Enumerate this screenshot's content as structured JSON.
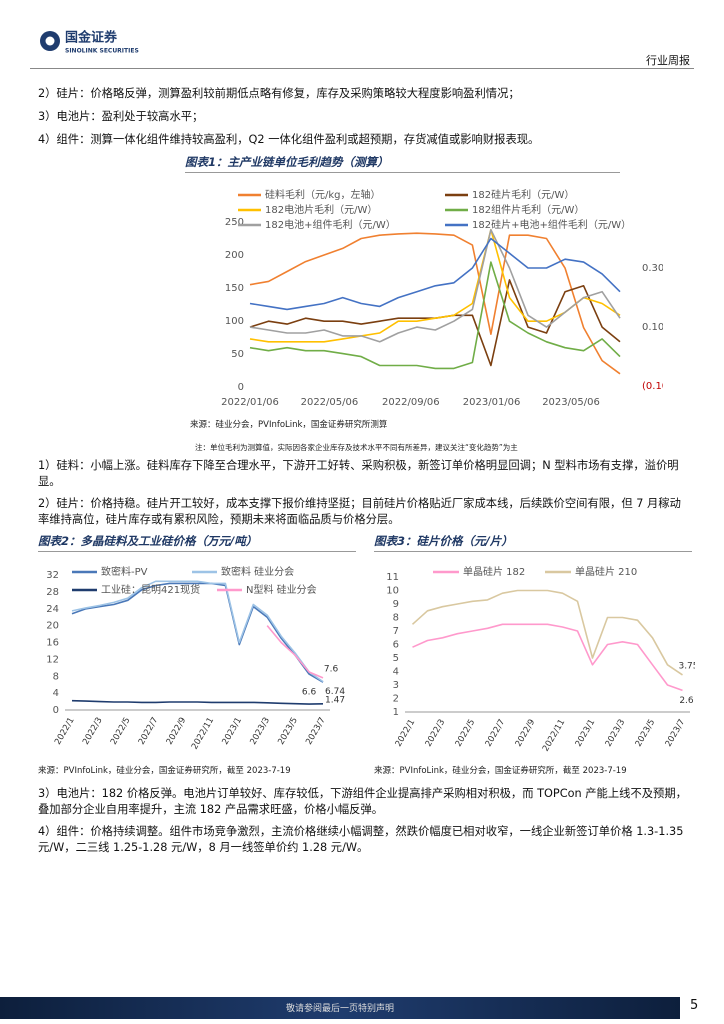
{
  "header": {
    "logo_cn": "国金证券",
    "logo_en": "SINOLINK SECURITIES",
    "section": "行业周报"
  },
  "paragraphs_top": [
    "2）硅片：价格略反弹，测算盈利较前期低点略有修复，库存及采购策略较大程度影响盈利情况；",
    "3）电池片：盈利处于较高水平；",
    "4）组件：测算一体化组件维持较高盈利，Q2 一体化组件盈利或超预期，存货减值或影响财报表现。"
  ],
  "paragraphs_mid": [
    "1）硅料：小幅上涨。硅料库存下降至合理水平，下游开工好转、采购积极，新签订单价格明显回调；N 型料市场有支撑，溢价明显。",
    "2）硅片：价格持稳。硅片开工较好，成本支撑下报价维持坚挺；目前硅片价格贴近厂家成本线，后续跌价空间有限，但 7 月稼动率维持高位，硅片库存或有累积风险，预期未来将面临品质与价格分层。"
  ],
  "paragraphs_bottom": [
    "3）电池片：182 价格反弹。电池片订单较好、库存较低，下游组件企业提高排产采购相对积极，而 TOPCon 产能上线不及预期，叠加部分企业自用率提升，主流 182 产品需求旺盛，价格小幅反弹。",
    "4）组件：价格持续调整。组件市场竞争激烈，主流价格继续小幅调整，然跌价幅度已相对收窄，一线企业新签订单价格 1.3-1.35 元/W，二三线 1.25-1.28 元/W，8 月一线签单价约 1.28 元/W。"
  ],
  "chart_data": [
    {
      "type": "line",
      "title": "图表1：主产业链单位毛利趋势（测算）",
      "source": "来源：硅业分会，PVInfoLink，国金证券研究所测算",
      "note": "注：单位毛利为测算值，实际因各家企业库存及技术水平不同有所差异，建议关注“变化趋势”为主",
      "x": [
        "2022/01/06",
        "2022/02/03",
        "2022/03/03",
        "2022/03/31",
        "2022/04/28",
        "2022/05/26",
        "2022/06/23",
        "2022/07/21",
        "2022/08/18",
        "2022/09/15",
        "2022/10/13",
        "2022/11/10",
        "2022/12/08",
        "2023/01/05",
        "2023/02/02",
        "2023/03/02",
        "2023/03/30",
        "2023/04/27",
        "2023/05/25",
        "2023/06/22",
        "2023/07/19"
      ],
      "xlim": [
        "2022/01/06",
        "2023/07/19"
      ],
      "xticks": [
        "2022/01/06",
        "2022/05/06",
        "2022/09/06",
        "2023/01/06",
        "2023/05/06"
      ],
      "ylim": [
        0,
        250
      ],
      "yticks": [
        0,
        50,
        100,
        150,
        200,
        250
      ],
      "y2lim": [
        -0.103,
        0.456
      ],
      "y2ticks": [
        {
          "value": -0.1,
          "label": "(0.10)"
        },
        {
          "value": 0.1,
          "label": "0.10"
        },
        {
          "value": 0.3,
          "label": "0.30"
        }
      ],
      "series": [
        {
          "name": "硅料毛利（元/kg，左轴）",
          "color": "#f08030",
          "values": [
            155,
            160,
            175,
            190,
            200,
            210,
            225,
            230,
            232,
            233,
            232,
            230,
            215,
            80,
            230,
            230,
            225,
            180,
            90,
            40,
            20
          ]
        },
        {
          "name": "182硅片毛利（元/W）",
          "color": "#7b3f10",
          "axis": "y2",
          "values": [
            0.1,
            0.12,
            0.11,
            0.13,
            0.12,
            0.12,
            0.11,
            0.12,
            0.13,
            0.13,
            0.13,
            0.14,
            0.14,
            -0.03,
            0.26,
            0.1,
            0.08,
            0.22,
            0.24,
            0.1,
            0.05
          ]
        },
        {
          "name": "182电池片毛利（元/W）",
          "color": "#ffc000",
          "axis": "y2",
          "values": [
            0.06,
            0.05,
            0.05,
            0.05,
            0.05,
            0.06,
            0.07,
            0.08,
            0.12,
            0.12,
            0.13,
            0.14,
            0.18,
            0.43,
            0.2,
            0.12,
            0.12,
            0.15,
            0.2,
            0.18,
            0.14
          ]
        },
        {
          "name": "182组件片毛利（元/W）",
          "color": "#70ad47",
          "axis": "y2",
          "values": [
            0.03,
            0.02,
            0.03,
            0.02,
            0.02,
            0.01,
            0.0,
            -0.03,
            -0.03,
            -0.03,
            -0.04,
            -0.04,
            -0.02,
            0.32,
            0.12,
            0.08,
            0.05,
            0.03,
            0.02,
            0.06,
            0.0
          ]
        },
        {
          "name": "182电池+组件毛利（元/W）",
          "color": "#a0a0a0",
          "axis": "y2",
          "values": [
            0.1,
            0.09,
            0.08,
            0.08,
            0.09,
            0.07,
            0.07,
            0.05,
            0.08,
            0.1,
            0.09,
            0.12,
            0.16,
            0.43,
            0.3,
            0.14,
            0.1,
            0.15,
            0.2,
            0.22,
            0.13
          ]
        },
        {
          "name": "182硅片+电池+组件毛利（元/W）",
          "color": "#4472c4",
          "axis": "y2",
          "values": [
            0.18,
            0.17,
            0.16,
            0.17,
            0.18,
            0.2,
            0.18,
            0.17,
            0.2,
            0.22,
            0.24,
            0.25,
            0.3,
            0.4,
            0.35,
            0.3,
            0.3,
            0.33,
            0.32,
            0.28,
            0.22
          ]
        }
      ]
    },
    {
      "type": "line",
      "title": "图表2：多晶硅料及工业硅价格（万元/吨）",
      "source": "来源：PVInfoLink，硅业分会，国金证券研究所，截至 2023-7-19",
      "categories": [
        "2022/1",
        null,
        "2022/3",
        null,
        "2022/5",
        null,
        "2022/7",
        null,
        "2022/9",
        null,
        "2022/11",
        null,
        "2023/1",
        null,
        "2023/3",
        null,
        "2023/5",
        null,
        "2023/7"
      ],
      "ylim": [
        0,
        32
      ],
      "yticks": [
        0,
        4,
        8,
        12,
        16,
        20,
        24,
        28,
        32
      ],
      "end_labels": true,
      "series": [
        {
          "name": "致密料-PV",
          "color": "#4a78b8",
          "values": [
            22.8,
            24,
            24.5,
            25,
            26,
            28.5,
            29.5,
            30,
            30,
            30,
            30,
            29.5,
            15.5,
            24.5,
            22,
            17,
            13,
            8.5,
            6.6
          ]
        },
        {
          "name": "致密料 硅业分会",
          "color": "#9dc3e6",
          "values": [
            23.5,
            24.2,
            24.8,
            25.5,
            26.5,
            29,
            30.5,
            30.5,
            30.5,
            30.5,
            30,
            30,
            16,
            25,
            22.5,
            17.5,
            13.5,
            9,
            6.74
          ]
        },
        {
          "name": "工业硅：昆明421现货",
          "color": "#1f3c6e",
          "values": [
            2.2,
            2.1,
            2.0,
            1.9,
            1.9,
            1.8,
            1.8,
            1.9,
            1.9,
            1.9,
            1.8,
            1.8,
            1.8,
            1.8,
            1.7,
            1.6,
            1.5,
            1.4,
            1.47
          ]
        },
        {
          "name": "N型料 硅业分会",
          "color": "#ff99cc",
          "values": [
            null,
            null,
            null,
            null,
            null,
            null,
            null,
            null,
            null,
            null,
            null,
            null,
            null,
            null,
            20,
            16,
            13,
            9,
            7.6
          ]
        }
      ]
    },
    {
      "type": "line",
      "title": "图表3：硅片价格（元/片）",
      "source": "来源：PVInfoLink，硅业分会，国金证券研究所，截至 2023-7-19",
      "categories": [
        "2022/1",
        null,
        "2022/3",
        null,
        "2022/5",
        null,
        "2022/7",
        null,
        "2022/9",
        null,
        "2022/11",
        null,
        "2023/1",
        null,
        "2023/3",
        null,
        "2023/5",
        null,
        "2023/7"
      ],
      "ylim": [
        1,
        11
      ],
      "yticks": [
        1,
        2,
        3,
        4,
        5,
        6,
        7,
        8,
        9,
        10,
        11
      ],
      "end_labels": true,
      "series": [
        {
          "name": "单晶硅片 182",
          "color": "#ff99cc",
          "values": [
            5.8,
            6.3,
            6.5,
            6.8,
            7.0,
            7.2,
            7.5,
            7.5,
            7.5,
            7.5,
            7.3,
            7.0,
            4.5,
            6.0,
            6.2,
            6.0,
            4.5,
            3.0,
            2.6
          ]
        },
        {
          "name": "单晶硅片 210",
          "color": "#d9c8a0",
          "values": [
            7.5,
            8.5,
            8.8,
            9.0,
            9.2,
            9.3,
            9.8,
            10.0,
            10.0,
            10.0,
            9.8,
            9.2,
            5.0,
            8.0,
            8.0,
            7.8,
            6.5,
            4.5,
            3.75
          ]
        }
      ]
    }
  ],
  "footer": {
    "disclaimer": "敬请参阅最后一页特别声明",
    "page": "5"
  }
}
